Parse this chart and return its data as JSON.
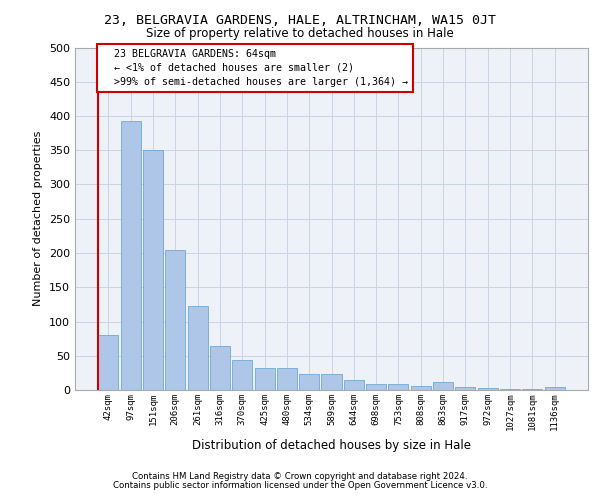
{
  "title": "23, BELGRAVIA GARDENS, HALE, ALTRINCHAM, WA15 0JT",
  "subtitle": "Size of property relative to detached houses in Hale",
  "xlabel": "Distribution of detached houses by size in Hale",
  "ylabel": "Number of detached properties",
  "bar_color": "#aec6e8",
  "bar_edge_color": "#5a9fd4",
  "categories": [
    "42sqm",
    "97sqm",
    "151sqm",
    "206sqm",
    "261sqm",
    "316sqm",
    "370sqm",
    "425sqm",
    "480sqm",
    "534sqm",
    "589sqm",
    "644sqm",
    "698sqm",
    "753sqm",
    "808sqm",
    "863sqm",
    "917sqm",
    "972sqm",
    "1027sqm",
    "1081sqm",
    "1136sqm"
  ],
  "values": [
    80,
    393,
    351,
    204,
    122,
    64,
    44,
    32,
    32,
    23,
    23,
    14,
    9,
    9,
    6,
    11,
    4,
    3,
    2,
    2,
    4
  ],
  "ylim": [
    0,
    500
  ],
  "yticks": [
    0,
    50,
    100,
    150,
    200,
    250,
    300,
    350,
    400,
    450,
    500
  ],
  "annotation_text": "  23 BELGRAVIA GARDENS: 64sqm\n  ← <1% of detached houses are smaller (2)\n  >99% of semi-detached houses are larger (1,364) →",
  "annotation_box_color": "#ffffff",
  "annotation_box_edge_color": "#cc0000",
  "footer_line1": "Contains HM Land Registry data © Crown copyright and database right 2024.",
  "footer_line2": "Contains public sector information licensed under the Open Government Licence v3.0.",
  "grid_color": "#c8d4e8",
  "background_color": "#eef2f8"
}
